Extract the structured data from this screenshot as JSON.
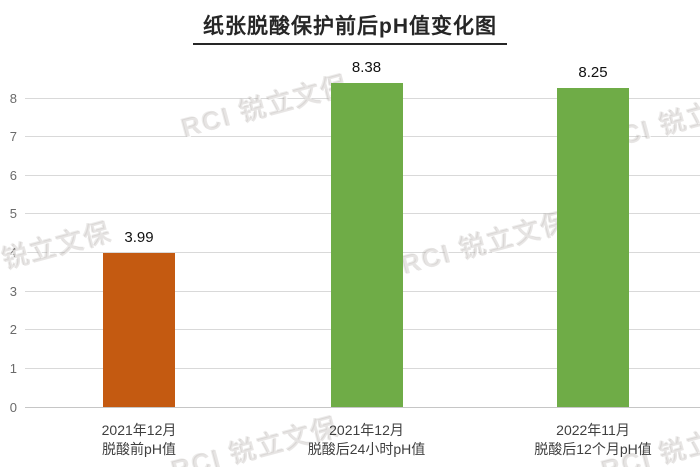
{
  "figure": {
    "title": "纸张脱酸保护前后pH值变化图",
    "watermark_text": "RCI 锐立文保"
  },
  "chart_data": {
    "type": "bar",
    "title": "纸张脱酸保护前后pH值变化图",
    "categories": [
      "2021年12月 脱酸前pH值",
      "2021年12月 脱酸后24小时pH值",
      "2022年11月 脱酸后12个月pH值"
    ],
    "category_lines": [
      [
        "2021年12月",
        "脱酸前pH值"
      ],
      [
        "2021年12月",
        "脱酸后24小时pH值"
      ],
      [
        "2022年11月",
        "脱酸后12个月pH值"
      ]
    ],
    "values": [
      3.99,
      8.38,
      8.25
    ],
    "value_labels": [
      "3.99",
      "8.38",
      "8.25"
    ],
    "bar_colors": [
      "#C45A11",
      "#6FAC47",
      "#6FAC47"
    ],
    "xlabel": "",
    "ylabel": "",
    "ylim": [
      0,
      8
    ],
    "yticks": [
      0,
      1,
      2,
      3,
      4,
      5,
      6,
      7,
      8
    ],
    "grid": true,
    "legend": false,
    "colors": {
      "bar_before": "#C45A11",
      "bar_after": "#6FAC47",
      "gridline": "#D9D9D9",
      "axis_tick_label": "#6A6A6A",
      "category_label": "#3F3F3F",
      "value_label": "#111111",
      "title": "#262626"
    }
  }
}
